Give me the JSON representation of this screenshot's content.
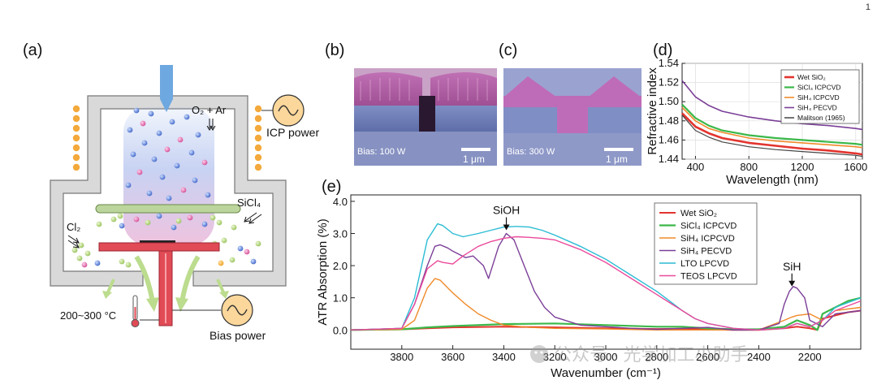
{
  "corner_mark": "1",
  "watermark": "公众号 · 光学加工小助手",
  "panels": {
    "a": {
      "label": "(a)",
      "gas_label": "O₂ + Ar",
      "icp_label": "ICP power",
      "sicl4_label": "SiCl₄",
      "cl2_label": "Cl₂",
      "temp_label": "200~300 °C",
      "bias_label": "Bias power"
    },
    "b": {
      "label": "(b)",
      "bias_text": "Bias: 100 W",
      "scale_text": "1 μm"
    },
    "c": {
      "label": "(c)",
      "bias_text": "Bias: 300 W",
      "scale_text": "1 μm"
    }
  },
  "chart_data": [
    {
      "id": "d",
      "label": "(d)",
      "type": "line",
      "xlabel": "Wavelength (nm)",
      "ylabel": "Refractive index",
      "xlim": [
        300,
        1650
      ],
      "ylim": [
        1.44,
        1.54
      ],
      "xticks": [
        400,
        800,
        1200,
        1600
      ],
      "yticks": [
        1.44,
        1.46,
        1.48,
        1.5,
        1.52,
        1.54
      ],
      "grid": true,
      "legend_position": "top-right",
      "x": [
        300,
        400,
        500,
        600,
        800,
        1000,
        1200,
        1400,
        1600,
        1650
      ],
      "series": [
        {
          "name": "Wet SiO₂",
          "color": "#e3342f",
          "width": 2.6,
          "values": [
            1.488,
            1.474,
            1.467,
            1.462,
            1.457,
            1.454,
            1.451,
            1.449,
            1.446,
            1.445
          ]
        },
        {
          "name": "SiCl₄ ICPCVD",
          "color": "#3cb84a",
          "width": 2.2,
          "values": [
            1.497,
            1.483,
            1.475,
            1.47,
            1.465,
            1.462,
            1.46,
            1.458,
            1.456,
            1.455
          ]
        },
        {
          "name": "SiH₄ ICPCVD",
          "color": "#f08a2a",
          "width": 1.6,
          "values": [
            1.494,
            1.48,
            1.472,
            1.468,
            1.462,
            1.459,
            1.457,
            1.455,
            1.453,
            1.452
          ]
        },
        {
          "name": "SiH₄ PECVD",
          "color": "#7b3f98",
          "width": 1.6,
          "values": [
            1.522,
            1.505,
            1.496,
            1.49,
            1.484,
            1.48,
            1.477,
            1.475,
            1.472,
            1.471
          ]
        },
        {
          "name": "Malitson (1965)",
          "color": "#444444",
          "width": 1.2,
          "values": [
            1.486,
            1.47,
            1.463,
            1.458,
            1.453,
            1.45,
            1.448,
            1.446,
            1.444,
            1.443
          ]
        }
      ]
    },
    {
      "id": "e",
      "label": "(e)",
      "type": "line",
      "xlabel": "Wavenumber (cm⁻¹)",
      "ylabel": "ATR Absorption (%)",
      "xlim": [
        4000,
        2000
      ],
      "ylim": [
        -0.6,
        4.2
      ],
      "xticks": [
        3800,
        3600,
        3400,
        3200,
        3000,
        2800,
        2600,
        2400,
        2200
      ],
      "yticks": [
        0.0,
        1.0,
        2.0,
        3.0,
        4.0
      ],
      "ytick_labels": [
        "0.0",
        "1.0",
        "2.0",
        "3.0",
        "4.0"
      ],
      "grid": false,
      "legend_position": "top-right",
      "annotations": [
        {
          "text": "SiOH",
          "x": 3390,
          "y": 3.05
        },
        {
          "text": "SiH",
          "x": 2270,
          "y": 1.3
        }
      ],
      "series": [
        {
          "name": "Wet SiO₂",
          "color": "#e3342f",
          "width": 2.0,
          "x": [
            4000,
            3800,
            3700,
            3600,
            3400,
            3200,
            3000,
            2800,
            2700,
            2600,
            2500,
            2400,
            2300,
            2250,
            2200,
            2170,
            2150,
            2100,
            2050,
            2000
          ],
          "y": [
            0.0,
            0.02,
            0.05,
            0.08,
            0.1,
            0.08,
            0.05,
            0.03,
            0.04,
            0.02,
            0.0,
            0.0,
            0.05,
            0.1,
            0.05,
            0.0,
            0.35,
            0.45,
            0.55,
            0.6
          ]
        },
        {
          "name": "SiCl₄ ICPCVD",
          "color": "#3cb84a",
          "width": 2.2,
          "x": [
            4000,
            3800,
            3700,
            3600,
            3400,
            3200,
            3000,
            2800,
            2700,
            2600,
            2500,
            2400,
            2300,
            2250,
            2200,
            2170,
            2150,
            2100,
            2050,
            2000
          ],
          "y": [
            0.0,
            0.02,
            0.08,
            0.12,
            0.18,
            0.2,
            0.15,
            0.1,
            0.1,
            0.05,
            0.02,
            0.02,
            0.1,
            0.3,
            0.15,
            0.0,
            0.5,
            0.7,
            0.9,
            1.0
          ]
        },
        {
          "name": "SiH₄ ICPCVD",
          "color": "#f08a2a",
          "width": 1.4,
          "x": [
            4000,
            3800,
            3750,
            3700,
            3670,
            3650,
            3600,
            3550,
            3500,
            3450,
            3400,
            3300,
            3200,
            3000,
            2800,
            2600,
            2400,
            2300,
            2270,
            2250,
            2200,
            2150,
            2100,
            2000
          ],
          "y": [
            0.0,
            0.02,
            0.3,
            1.3,
            1.6,
            1.55,
            1.15,
            0.8,
            0.5,
            0.3,
            0.15,
            0.08,
            0.05,
            0.03,
            0.0,
            0.0,
            0.0,
            0.3,
            0.4,
            0.45,
            0.5,
            0.3,
            0.6,
            0.7
          ]
        },
        {
          "name": "SiH₄ PECVD",
          "color": "#7b3f98",
          "width": 1.4,
          "x": [
            4000,
            3800,
            3750,
            3700,
            3670,
            3650,
            3620,
            3600,
            3550,
            3520,
            3480,
            3460,
            3420,
            3390,
            3360,
            3320,
            3280,
            3240,
            3200,
            3100,
            3000,
            2900,
            2800,
            2700,
            2600,
            2500,
            2400,
            2320,
            2300,
            2280,
            2265,
            2250,
            2220,
            2200,
            2150,
            2100,
            2000
          ],
          "y": [
            0.0,
            0.05,
            0.8,
            2.0,
            2.6,
            2.65,
            2.55,
            2.45,
            2.25,
            2.3,
            2.0,
            1.6,
            2.6,
            3.0,
            2.8,
            2.0,
            1.2,
            0.7,
            0.4,
            0.15,
            0.1,
            0.05,
            0.02,
            0.05,
            0.08,
            0.0,
            0.0,
            0.2,
            0.8,
            1.2,
            1.35,
            1.3,
            1.0,
            0.3,
            0.1,
            0.5,
            0.6
          ]
        },
        {
          "name": "LTO LPCVD",
          "color": "#2bbcd4",
          "width": 1.4,
          "x": [
            4000,
            3800,
            3750,
            3700,
            3660,
            3640,
            3600,
            3560,
            3500,
            3450,
            3400,
            3350,
            3300,
            3250,
            3200,
            3100,
            3000,
            2900,
            2800,
            2750,
            2700,
            2650,
            2600,
            2500,
            2400,
            2300,
            2250,
            2200,
            2150,
            2100,
            2000
          ],
          "y": [
            0.0,
            0.05,
            1.0,
            2.8,
            3.3,
            3.25,
            3.0,
            2.9,
            3.0,
            3.1,
            3.2,
            3.22,
            3.2,
            3.1,
            2.95,
            2.6,
            2.2,
            1.7,
            1.2,
            0.9,
            0.6,
            0.35,
            0.2,
            0.05,
            0.0,
            0.05,
            0.2,
            0.1,
            0.3,
            0.7,
            1.0
          ]
        },
        {
          "name": "TEOS LPCVD",
          "color": "#ea4a9c",
          "width": 1.4,
          "x": [
            4000,
            3800,
            3750,
            3700,
            3660,
            3640,
            3600,
            3560,
            3500,
            3450,
            3400,
            3350,
            3300,
            3250,
            3200,
            3100,
            3000,
            2900,
            2800,
            2750,
            2700,
            2650,
            2600,
            2500,
            2400,
            2300,
            2250,
            2200,
            2150,
            2100,
            2000
          ],
          "y": [
            0.0,
            0.05,
            0.8,
            1.9,
            2.15,
            2.1,
            2.05,
            2.3,
            2.6,
            2.75,
            2.85,
            2.9,
            2.88,
            2.85,
            2.8,
            2.5,
            2.1,
            1.6,
            1.1,
            0.85,
            0.6,
            0.35,
            0.2,
            0.05,
            0.0,
            0.05,
            0.2,
            0.1,
            0.3,
            0.6,
            0.9
          ]
        }
      ]
    }
  ]
}
